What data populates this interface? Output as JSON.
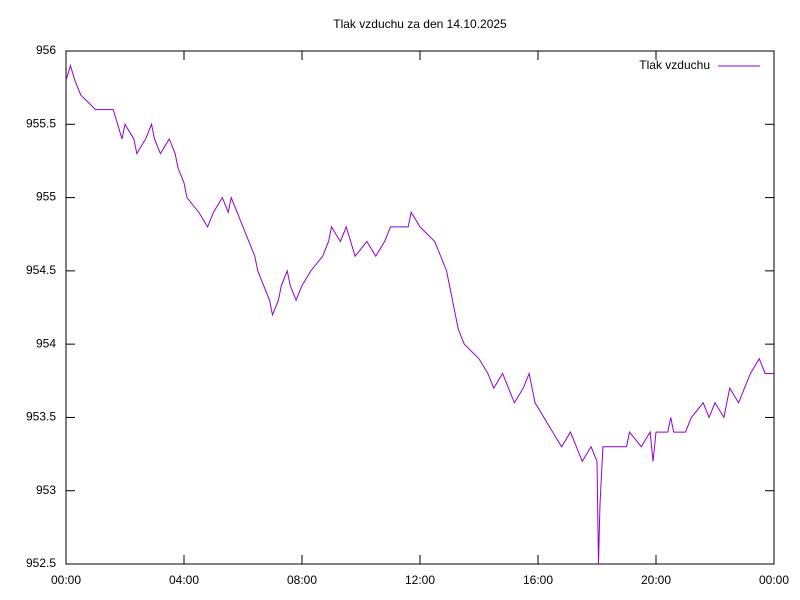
{
  "chart_data": {
    "type": "line",
    "title": "Tlak vzduchu za den 14.10.2025",
    "legend": "top-right",
    "grid": false,
    "xlim": [
      0,
      24
    ],
    "xticks": [
      {
        "value": 0,
        "label": "00:00"
      },
      {
        "value": 4,
        "label": "04:00"
      },
      {
        "value": 8,
        "label": "08:00"
      },
      {
        "value": 12,
        "label": "12:00"
      },
      {
        "value": 16,
        "label": "16:00"
      },
      {
        "value": 20,
        "label": "20:00"
      },
      {
        "value": 24,
        "label": "00:00"
      }
    ],
    "ylim": [
      952.5,
      956
    ],
    "yticks": [
      952.5,
      953,
      953.5,
      954,
      954.5,
      955,
      955.5,
      956
    ],
    "x": [
      0,
      0.15,
      0.3,
      0.5,
      1.0,
      1.6,
      1.75,
      1.9,
      2.0,
      2.3,
      2.4,
      2.7,
      2.9,
      3.0,
      3.2,
      3.5,
      3.7,
      3.8,
      4.0,
      4.1,
      4.5,
      4.8,
      5.0,
      5.3,
      5.5,
      5.6,
      5.8,
      6.0,
      6.2,
      6.4,
      6.5,
      6.7,
      6.9,
      7.0,
      7.2,
      7.3,
      7.5,
      7.6,
      7.8,
      8.0,
      8.3,
      8.7,
      8.9,
      9.0,
      9.3,
      9.5,
      9.8,
      10.2,
      10.5,
      10.8,
      11.0,
      11.6,
      11.7,
      12.0,
      12.5,
      12.7,
      12.9,
      13.1,
      13.3,
      13.5,
      14.0,
      14.3,
      14.5,
      14.8,
      15.2,
      15.5,
      15.7,
      15.9,
      16.2,
      16.5,
      16.8,
      17.1,
      17.3,
      17.5,
      17.8,
      18.0,
      18.05,
      18.1,
      18.2,
      19.0,
      19.1,
      19.5,
      19.8,
      19.9,
      20.0,
      20.4,
      20.5,
      20.6,
      21.0,
      21.2,
      21.6,
      21.8,
      22.0,
      22.3,
      22.5,
      22.8,
      23.0,
      23.2,
      23.5,
      23.7,
      24.0
    ],
    "series": [
      {
        "name": "Tlak vzduchu",
        "color": "#9400d3",
        "values": [
          955.8,
          955.9,
          955.8,
          955.7,
          955.6,
          955.6,
          955.5,
          955.4,
          955.5,
          955.4,
          955.3,
          955.4,
          955.5,
          955.4,
          955.3,
          955.4,
          955.3,
          955.2,
          955.1,
          955.0,
          954.9,
          954.8,
          954.9,
          955.0,
          954.9,
          955.0,
          954.9,
          954.8,
          954.7,
          954.6,
          954.5,
          954.4,
          954.3,
          954.2,
          954.3,
          954.4,
          954.5,
          954.4,
          954.3,
          954.4,
          954.5,
          954.6,
          954.7,
          954.8,
          954.7,
          954.8,
          954.6,
          954.7,
          954.6,
          954.7,
          954.8,
          954.8,
          954.9,
          954.8,
          954.7,
          954.6,
          954.5,
          954.3,
          954.1,
          954.0,
          953.9,
          953.8,
          953.7,
          953.8,
          953.6,
          953.7,
          953.8,
          953.6,
          953.5,
          953.4,
          953.3,
          953.4,
          953.3,
          953.2,
          953.3,
          953.2,
          952.5,
          952.9,
          953.3,
          953.3,
          953.4,
          953.3,
          953.4,
          953.2,
          953.4,
          953.4,
          953.5,
          953.4,
          953.4,
          953.5,
          953.6,
          953.5,
          953.6,
          953.5,
          953.7,
          953.6,
          953.7,
          953.8,
          953.9,
          953.8,
          953.8
        ]
      }
    ]
  }
}
